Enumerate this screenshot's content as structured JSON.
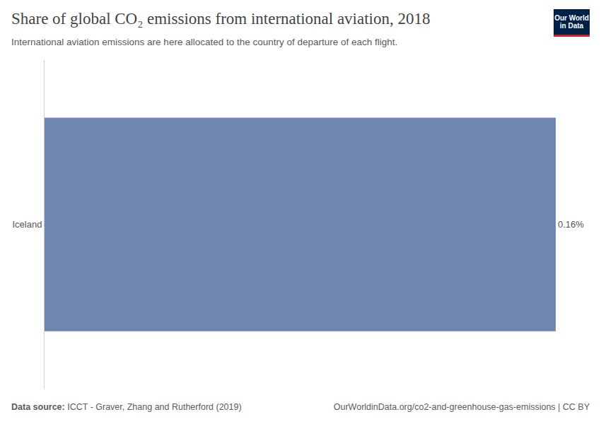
{
  "chart_data": {
    "type": "bar",
    "orientation": "horizontal",
    "title": "Share of global CO₂ emissions from international aviation, 2018",
    "subtitle": "International aviation emissions are here allocated to the country of departure of each flight.",
    "categories": [
      "Iceland"
    ],
    "values": [
      0.16
    ],
    "value_labels": [
      "0.16%"
    ],
    "color": "#6e87b1",
    "xlim": [
      0,
      0.16
    ],
    "grid": false,
    "data_labels": true,
    "tick_labels": "y",
    "source_label": "Data source:",
    "source": "ICCT - Graver, Zhang and Rutherford (2019)",
    "url_note": "OurWorldinData.org/co2-and-greenhouse-gas-emissions | CC BY",
    "logo": [
      "Our World",
      "in Data"
    ]
  }
}
